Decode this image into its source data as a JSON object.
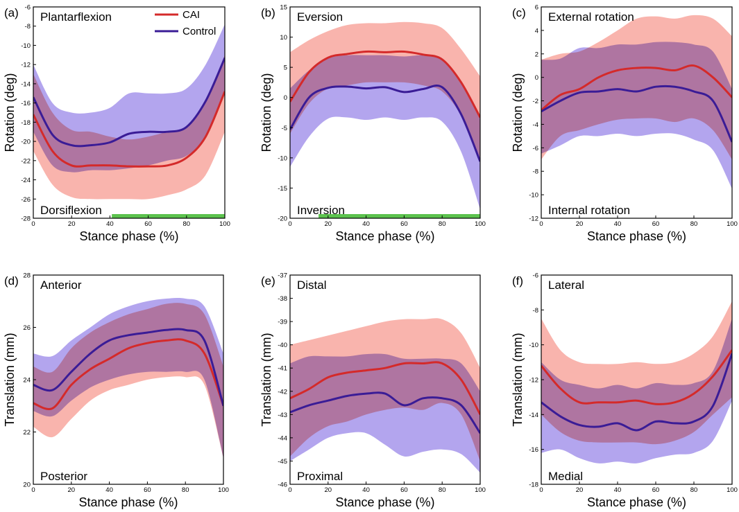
{
  "colors": {
    "cai_line": "#d42a2a",
    "control_line": "#3a1c96",
    "cai_band": "#f8a79f",
    "control_band": "#b3a5ee",
    "band_overlap": "#b96f95",
    "significance": "#5cc24e"
  },
  "chart_data": [
    {
      "type": "line",
      "panel": "(a)",
      "top_label": "Plantarflexion",
      "bottom_label": "Dorsiflexion",
      "ylabel": "Rotation (deg)",
      "xlabel": "Stance phase (%)",
      "xlim": [
        0,
        100
      ],
      "ylim": [
        -28,
        -6
      ],
      "xticks": [
        0,
        20,
        40,
        60,
        80,
        100
      ],
      "yticks": [
        -28,
        -26,
        -24,
        -22,
        -20,
        -18,
        -16,
        -14,
        -12,
        -10,
        -8,
        -6
      ],
      "legend": [
        "CAI",
        "Control"
      ],
      "significance": [
        [
          41,
          100
        ]
      ],
      "x": [
        0,
        10,
        20,
        30,
        40,
        50,
        60,
        70,
        80,
        90,
        100
      ],
      "series": [
        {
          "name": "CAI",
          "mean": [
            -17.2,
            -21.0,
            -22.5,
            -22.5,
            -22.5,
            -22.6,
            -22.6,
            -22.5,
            -21.7,
            -19.5,
            -14.8
          ],
          "lower": [
            -21.0,
            -24.5,
            -25.8,
            -26.0,
            -26.0,
            -26.0,
            -26.0,
            -25.6,
            -25.0,
            -23.5,
            -19.0
          ],
          "upper": [
            -13.0,
            -17.0,
            -18.8,
            -19.0,
            -19.5,
            -19.8,
            -19.5,
            -19.0,
            -18.5,
            -16.0,
            -11.0
          ]
        },
        {
          "name": "Control",
          "mean": [
            -15.4,
            -19.3,
            -20.4,
            -20.4,
            -20.1,
            -19.2,
            -19.0,
            -19.0,
            -18.5,
            -15.8,
            -11.3
          ],
          "lower": [
            -19.0,
            -22.5,
            -23.2,
            -23.0,
            -23.0,
            -22.8,
            -22.5,
            -22.0,
            -21.5,
            -19.5,
            -15.0
          ],
          "upper": [
            -12.0,
            -16.0,
            -17.0,
            -17.0,
            -16.5,
            -15.0,
            -15.0,
            -15.0,
            -14.5,
            -12.0,
            -7.8
          ]
        }
      ]
    },
    {
      "type": "line",
      "panel": "(b)",
      "top_label": "Eversion",
      "bottom_label": "Inversion",
      "ylabel": "Rotation (deg)",
      "xlabel": "Stance phase (%)",
      "xlim": [
        0,
        100
      ],
      "ylim": [
        -20,
        15
      ],
      "xticks": [
        0,
        20,
        40,
        60,
        80,
        100
      ],
      "yticks": [
        -20,
        -15,
        -10,
        -5,
        0,
        5,
        10,
        15
      ],
      "legend": [],
      "significance": [
        [
          15,
          100
        ]
      ],
      "x": [
        0,
        10,
        20,
        30,
        40,
        50,
        60,
        70,
        80,
        90,
        100
      ],
      "series": [
        {
          "name": "CAI",
          "mean": [
            -0.7,
            4.2,
            6.6,
            7.2,
            7.6,
            7.5,
            7.6,
            7.1,
            6.3,
            2.5,
            -3.3
          ],
          "lower": [
            -6.0,
            -1.0,
            1.5,
            2.0,
            2.5,
            2.5,
            2.5,
            2.0,
            1.0,
            -3.0,
            -10.0
          ],
          "upper": [
            7.5,
            9.5,
            11.0,
            12.0,
            12.3,
            12.3,
            12.5,
            12.3,
            11.5,
            8.0,
            3.5
          ]
        },
        {
          "name": "Control",
          "mean": [
            -5.3,
            0.0,
            1.6,
            1.8,
            1.5,
            1.7,
            0.9,
            1.4,
            1.7,
            -2.8,
            -10.6
          ],
          "lower": [
            -11.5,
            -6.5,
            -3.5,
            -3.3,
            -3.7,
            -3.3,
            -3.7,
            -3.3,
            -4.0,
            -9.0,
            -18.5
          ],
          "upper": [
            1.5,
            4.5,
            6.5,
            7.0,
            7.0,
            7.0,
            6.8,
            7.0,
            6.5,
            2.5,
            -3.5
          ]
        }
      ]
    },
    {
      "type": "line",
      "panel": "(c)",
      "top_label": "External rotation",
      "bottom_label": "Internal rotation",
      "ylabel": "Rotation (deg)",
      "xlabel": "Stance phase (%)",
      "xlim": [
        0,
        100
      ],
      "ylim": [
        -12,
        6
      ],
      "xticks": [
        0,
        20,
        40,
        60,
        80,
        100
      ],
      "yticks": [
        -12,
        -10,
        -8,
        -6,
        -4,
        -2,
        0,
        2,
        4,
        6
      ],
      "legend": [],
      "significance": [],
      "x": [
        0,
        10,
        20,
        30,
        40,
        50,
        60,
        70,
        80,
        90,
        100
      ],
      "series": [
        {
          "name": "CAI",
          "mean": [
            -2.8,
            -1.5,
            -1.0,
            0.0,
            0.6,
            0.8,
            0.8,
            0.6,
            1.0,
            0.0,
            -1.7
          ],
          "lower": [
            -7.0,
            -5.0,
            -4.5,
            -4.0,
            -3.6,
            -3.5,
            -3.5,
            -3.8,
            -3.5,
            -4.5,
            -7.0
          ],
          "upper": [
            1.5,
            2.0,
            2.2,
            3.0,
            4.0,
            5.0,
            5.2,
            5.0,
            5.3,
            5.0,
            3.5
          ]
        },
        {
          "name": "Control",
          "mean": [
            -2.9,
            -2.0,
            -1.3,
            -1.2,
            -1.0,
            -1.2,
            -0.8,
            -0.8,
            -1.2,
            -2.0,
            -5.5
          ],
          "lower": [
            -6.5,
            -5.8,
            -5.0,
            -5.0,
            -4.8,
            -5.0,
            -4.8,
            -4.8,
            -5.3,
            -6.2,
            -9.5
          ],
          "upper": [
            1.5,
            1.6,
            2.5,
            2.5,
            2.8,
            2.8,
            3.0,
            3.0,
            2.8,
            2.2,
            -1.0
          ]
        }
      ]
    },
    {
      "type": "line",
      "panel": "(d)",
      "top_label": "Anterior",
      "bottom_label": "Posterior",
      "ylabel": "Translation (mm)",
      "xlabel": "Stance phase (%)",
      "xlim": [
        0,
        100
      ],
      "ylim": [
        20,
        28
      ],
      "xticks": [
        0,
        20,
        40,
        60,
        80,
        100
      ],
      "yticks": [
        20,
        22,
        24,
        26,
        28
      ],
      "legend": [],
      "significance": [],
      "x": [
        0,
        10,
        20,
        30,
        40,
        50,
        60,
        70,
        80,
        90,
        100
      ],
      "series": [
        {
          "name": "CAI",
          "mean": [
            23.1,
            22.9,
            23.8,
            24.4,
            24.8,
            25.2,
            25.4,
            25.5,
            25.5,
            25.0,
            23.0
          ],
          "lower": [
            22.2,
            21.8,
            22.5,
            23.2,
            23.6,
            23.8,
            24.0,
            24.1,
            24.1,
            23.8,
            21.0
          ],
          "upper": [
            24.5,
            24.3,
            25.2,
            25.8,
            26.2,
            26.5,
            26.7,
            26.9,
            26.9,
            26.5,
            24.5
          ]
        },
        {
          "name": "Control",
          "mean": [
            23.8,
            23.6,
            24.3,
            25.0,
            25.5,
            25.7,
            25.8,
            25.9,
            25.9,
            25.5,
            23.0
          ],
          "lower": [
            22.8,
            22.6,
            23.2,
            23.7,
            24.0,
            24.2,
            24.3,
            24.3,
            24.3,
            24.0,
            21.0
          ],
          "upper": [
            25.0,
            24.9,
            25.5,
            26.0,
            26.5,
            26.8,
            27.0,
            27.1,
            27.1,
            26.8,
            25.0
          ]
        }
      ]
    },
    {
      "type": "line",
      "panel": "(e)",
      "top_label": "Distal",
      "bottom_label": "Proximal",
      "ylabel": "Translation (mm)",
      "xlabel": "Stance phase (%)",
      "xlim": [
        0,
        100
      ],
      "ylim": [
        -46,
        -37
      ],
      "xticks": [
        0,
        20,
        40,
        60,
        80,
        100
      ],
      "yticks": [
        -46,
        -45,
        -44,
        -43,
        -42,
        -41,
        -40,
        -39,
        -38,
        -37
      ],
      "legend": [],
      "significance": [],
      "x": [
        0,
        10,
        20,
        30,
        40,
        50,
        60,
        70,
        80,
        90,
        100
      ],
      "series": [
        {
          "name": "CAI",
          "mean": [
            -42.3,
            -41.9,
            -41.4,
            -41.2,
            -41.1,
            -41.0,
            -40.8,
            -40.8,
            -40.8,
            -41.5,
            -43.0
          ],
          "lower": [
            -44.8,
            -44.0,
            -43.5,
            -43.3,
            -43.0,
            -42.8,
            -42.7,
            -42.8,
            -42.5,
            -43.0,
            -45.0
          ],
          "upper": [
            -40.0,
            -39.8,
            -39.6,
            -39.4,
            -39.2,
            -39.0,
            -38.9,
            -38.9,
            -38.9,
            -39.5,
            -41.0
          ]
        },
        {
          "name": "Control",
          "mean": [
            -42.9,
            -42.6,
            -42.4,
            -42.2,
            -42.1,
            -42.1,
            -42.6,
            -42.3,
            -42.3,
            -42.6,
            -43.8
          ],
          "lower": [
            -45.0,
            -44.5,
            -44.0,
            -43.8,
            -43.8,
            -44.3,
            -44.8,
            -44.6,
            -44.5,
            -44.7,
            -45.5
          ],
          "upper": [
            -40.8,
            -40.5,
            -40.5,
            -40.5,
            -40.4,
            -40.4,
            -40.6,
            -40.6,
            -40.6,
            -40.8,
            -42.0
          ]
        }
      ]
    },
    {
      "type": "line",
      "panel": "(f)",
      "top_label": "Lateral",
      "bottom_label": "Medial",
      "ylabel": "Translation (mm)",
      "xlabel": "Stance phase (%)",
      "xlim": [
        0,
        100
      ],
      "ylim": [
        -18,
        -6
      ],
      "xticks": [
        0,
        20,
        40,
        60,
        80,
        100
      ],
      "yticks": [
        -18,
        -16,
        -14,
        -12,
        -10,
        -8,
        -6
      ],
      "legend": [],
      "significance": [],
      "x": [
        0,
        10,
        20,
        30,
        40,
        50,
        60,
        70,
        80,
        90,
        100
      ],
      "series": [
        {
          "name": "CAI",
          "mean": [
            -11.2,
            -12.5,
            -13.3,
            -13.3,
            -13.3,
            -13.2,
            -13.4,
            -13.3,
            -12.8,
            -11.8,
            -10.3
          ],
          "lower": [
            -14.0,
            -15.0,
            -15.5,
            -15.6,
            -15.6,
            -15.6,
            -15.7,
            -15.5,
            -15.0,
            -14.0,
            -13.0
          ],
          "upper": [
            -8.5,
            -10.3,
            -11.0,
            -11.1,
            -11.1,
            -11.0,
            -11.1,
            -11.0,
            -10.5,
            -9.5,
            -7.5
          ]
        },
        {
          "name": "Control",
          "mean": [
            -13.3,
            -14.1,
            -14.6,
            -14.7,
            -14.5,
            -14.9,
            -14.4,
            -14.5,
            -14.4,
            -13.5,
            -10.5
          ],
          "lower": [
            -16.2,
            -16.0,
            -16.5,
            -16.8,
            -16.7,
            -16.8,
            -16.5,
            -16.3,
            -16.2,
            -15.5,
            -13.2
          ],
          "upper": [
            -11.0,
            -12.0,
            -12.3,
            -12.5,
            -12.3,
            -12.5,
            -12.2,
            -12.3,
            -12.2,
            -11.5,
            -8.5
          ]
        }
      ]
    }
  ]
}
